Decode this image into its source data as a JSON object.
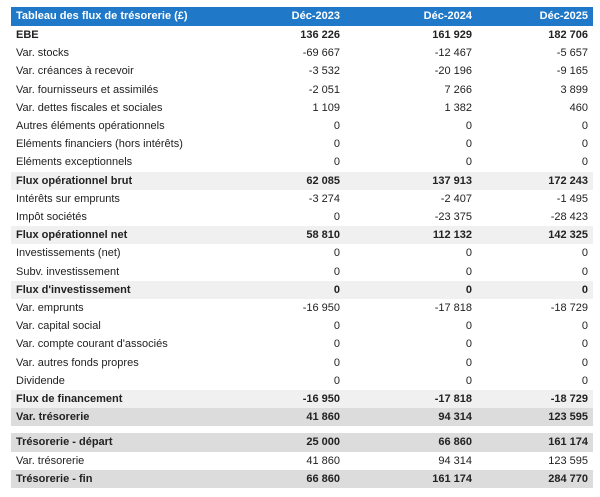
{
  "table": {
    "headers": [
      "Tableau des flux de trésorerie (£)",
      "Déc-2023",
      "Déc-2024",
      "Déc-2025"
    ],
    "rows": [
      {
        "label": "EBE",
        "v1": "136 226",
        "v2": "161 929",
        "v3": "182 706",
        "style": "bold"
      },
      {
        "label": "Var. stocks",
        "v1": "-69 667",
        "v2": "-12 467",
        "v3": "-5 657",
        "style": ""
      },
      {
        "label": "Var. créances à recevoir",
        "v1": "-3 532",
        "v2": "-20 196",
        "v3": "-9 165",
        "style": ""
      },
      {
        "label": "Var. fournisseurs et assimilés",
        "v1": "-2 051",
        "v2": "7 266",
        "v3": "3 899",
        "style": ""
      },
      {
        "label": "Var. dettes fiscales et sociales",
        "v1": "1 109",
        "v2": "1 382",
        "v3": "460",
        "style": ""
      },
      {
        "label": "Autres éléments opérationnels",
        "v1": "0",
        "v2": "0",
        "v3": "0",
        "style": ""
      },
      {
        "label": "Eléments financiers (hors intérêts)",
        "v1": "0",
        "v2": "0",
        "v3": "0",
        "style": ""
      },
      {
        "label": "Eléments exceptionnels",
        "v1": "0",
        "v2": "0",
        "v3": "0",
        "style": ""
      },
      {
        "label": "Flux opérationnel brut",
        "v1": "62 085",
        "v2": "137 913",
        "v3": "172 243",
        "style": "shade-bold"
      },
      {
        "label": "Intérêts sur emprunts",
        "v1": "-3 274",
        "v2": "-2 407",
        "v3": "-1 495",
        "style": ""
      },
      {
        "label": "Impôt sociétés",
        "v1": "0",
        "v2": "-23 375",
        "v3": "-28 423",
        "style": ""
      },
      {
        "label": "Flux opérationnel net",
        "v1": "58 810",
        "v2": "112 132",
        "v3": "142 325",
        "style": "shade-bold"
      },
      {
        "label": "Investissements (net)",
        "v1": "0",
        "v2": "0",
        "v3": "0",
        "style": ""
      },
      {
        "label": "Subv. investissement",
        "v1": "0",
        "v2": "0",
        "v3": "0",
        "style": ""
      },
      {
        "label": "Flux d'investissement",
        "v1": "0",
        "v2": "0",
        "v3": "0",
        "style": "shade-bold"
      },
      {
        "label": "Var. emprunts",
        "v1": "-16 950",
        "v2": "-17 818",
        "v3": "-18 729",
        "style": ""
      },
      {
        "label": "Var. capital social",
        "v1": "0",
        "v2": "0",
        "v3": "0",
        "style": ""
      },
      {
        "label": "Var. compte courant d'associés",
        "v1": "0",
        "v2": "0",
        "v3": "0",
        "style": ""
      },
      {
        "label": "Var. autres fonds propres",
        "v1": "0",
        "v2": "0",
        "v3": "0",
        "style": ""
      },
      {
        "label": "Dividende",
        "v1": "0",
        "v2": "0",
        "v3": "0",
        "style": ""
      },
      {
        "label": "Flux de financement",
        "v1": "-16 950",
        "v2": "-17 818",
        "v3": "-18 729",
        "style": "shade-bold"
      },
      {
        "label": "Var. trésorerie",
        "v1": "41 860",
        "v2": "94 314",
        "v3": "123 595",
        "style": "strong"
      },
      {
        "label": "",
        "v1": "",
        "v2": "",
        "v3": "",
        "style": "gap"
      },
      {
        "label": "Trésorerie - départ",
        "v1": "25 000",
        "v2": "66 860",
        "v3": "161 174",
        "style": "strong"
      },
      {
        "label": "Var. trésorerie",
        "v1": "41 860",
        "v2": "94 314",
        "v3": "123 595",
        "style": ""
      },
      {
        "label": "Trésorerie - fin",
        "v1": "66 860",
        "v2": "161 174",
        "v3": "284 770",
        "style": "strong"
      }
    ]
  },
  "colors": {
    "header_bg": "#1f78c8",
    "header_text": "#ffffff",
    "shade": "#f0f0f0",
    "strong": "#dcdcdc"
  }
}
